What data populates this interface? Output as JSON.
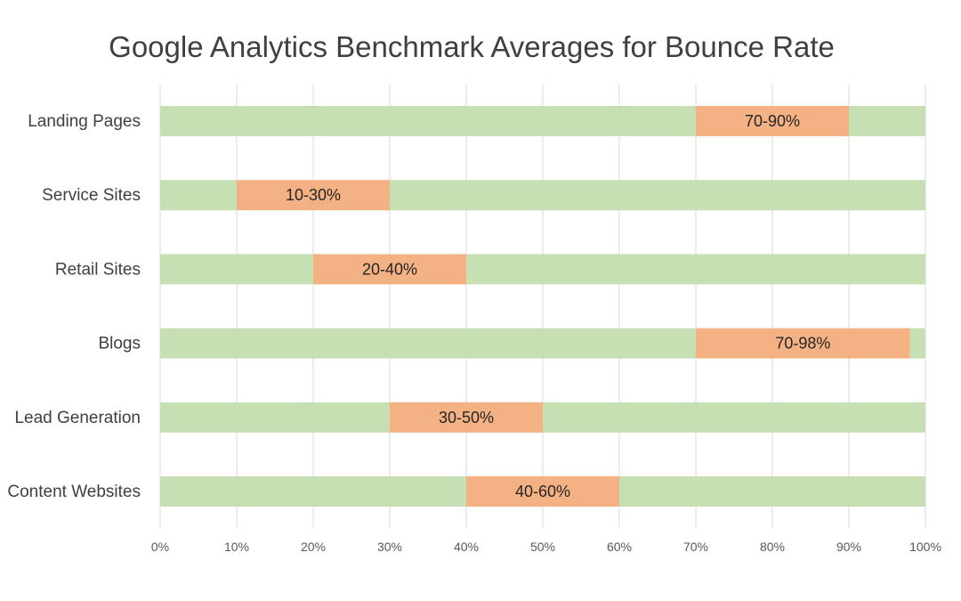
{
  "chart_data": {
    "type": "bar",
    "orientation": "horizontal",
    "stacked": true,
    "title": "Google Analytics Benchmark Averages for Bounce Rate",
    "categories": [
      "Landing Pages",
      "Service Sites",
      "Retail Sites",
      "Blogs",
      "Lead Generation",
      "Content Websites"
    ],
    "ranges": [
      {
        "low": 70,
        "high": 90,
        "label": "70-90%"
      },
      {
        "low": 10,
        "high": 30,
        "label": "10-30%"
      },
      {
        "low": 20,
        "high": 40,
        "label": "20-40%"
      },
      {
        "low": 70,
        "high": 98,
        "label": "70-98%"
      },
      {
        "low": 30,
        "high": 50,
        "label": "30-50%"
      },
      {
        "low": 40,
        "high": 60,
        "label": "40-60%"
      }
    ],
    "xlim": [
      0,
      100
    ],
    "x_ticks": [
      "0%",
      "10%",
      "20%",
      "30%",
      "40%",
      "50%",
      "60%",
      "70%",
      "80%",
      "90%",
      "100%"
    ],
    "grid": "vertical",
    "legend": "none",
    "colors": {
      "base": "#c6e0b4",
      "range": "#f4b183",
      "grid": "#d9d9d9"
    }
  }
}
